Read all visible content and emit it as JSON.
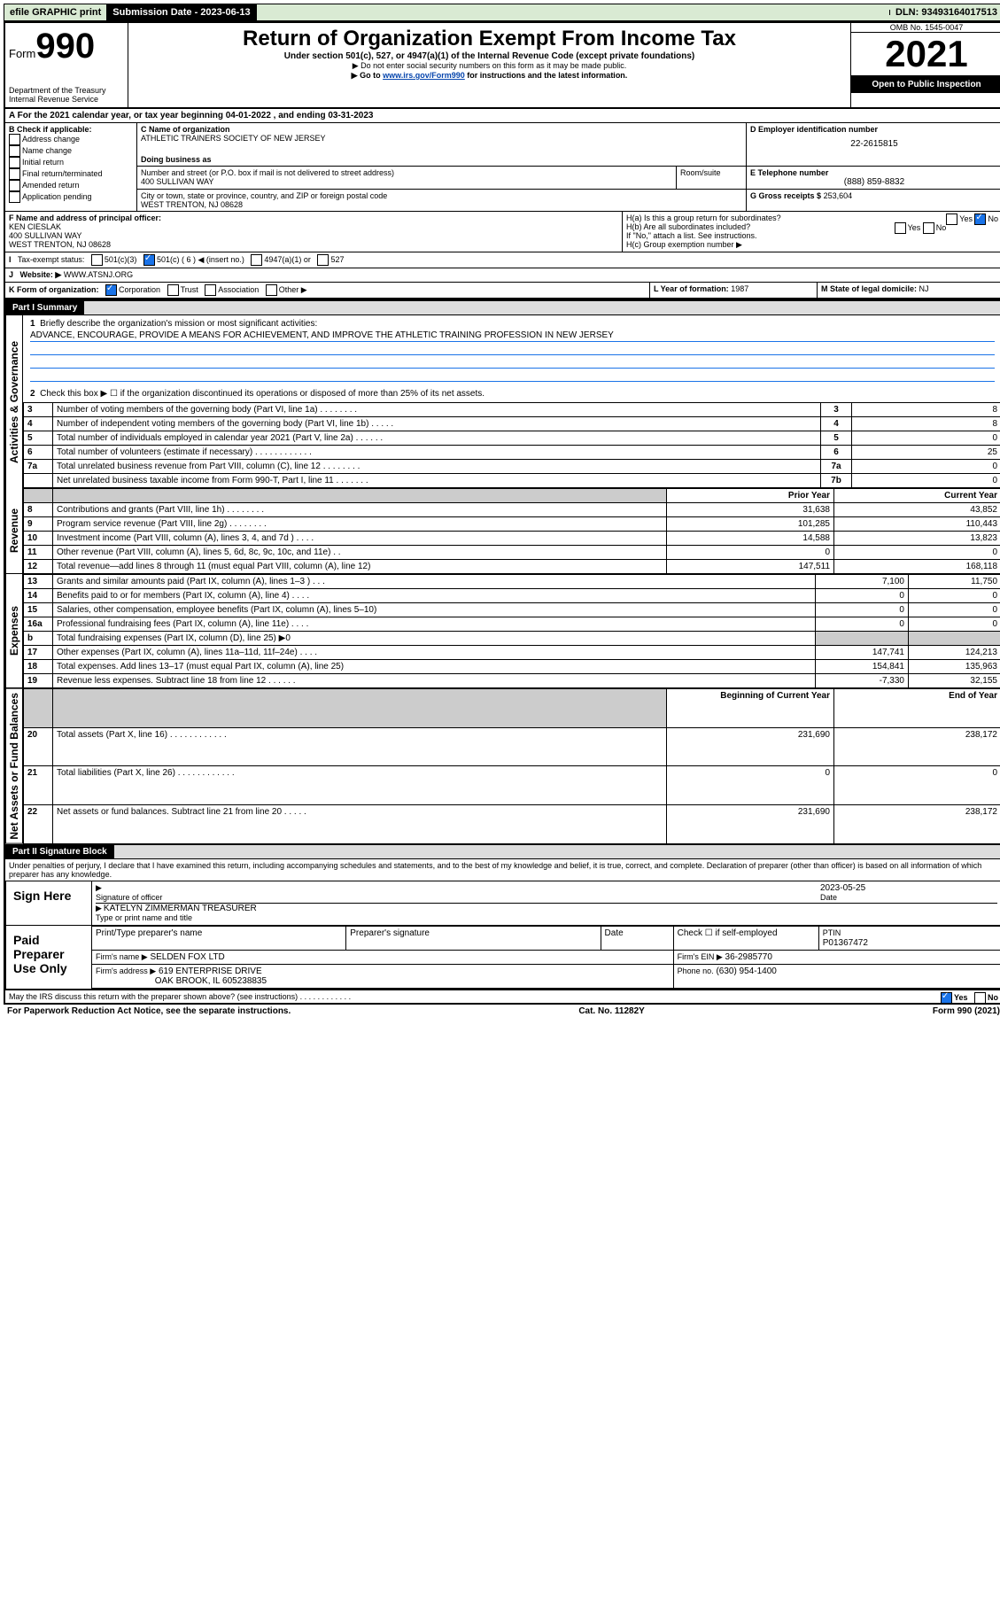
{
  "topbar": {
    "efile": "efile GRAPHIC print",
    "sub_date_label": "Submission Date - 2023-06-13",
    "dln": "DLN: 93493164017513"
  },
  "header": {
    "form_label": "Form",
    "form_no": "990",
    "dept": "Department of the Treasury",
    "irs": "Internal Revenue Service",
    "title": "Return of Organization Exempt From Income Tax",
    "subtitle": "Under section 501(c), 527, or 4947(a)(1) of the Internal Revenue Code (except private foundations)",
    "note1": "▶ Do not enter social security numbers on this form as it may be made public.",
    "note2_pre": "▶ Go to ",
    "note2_link": "www.irs.gov/Form990",
    "note2_post": " for instructions and the latest information.",
    "omb": "OMB No. 1545-0047",
    "year": "2021",
    "open": "Open to Public Inspection"
  },
  "periodA": "For the 2021 calendar year, or tax year beginning 04-01-2022     , and ending 03-31-2023",
  "blockB": {
    "label": "B Check if applicable:",
    "opts": [
      "Address change",
      "Name change",
      "Initial return",
      "Final return/terminated",
      "Amended return",
      "Application pending"
    ]
  },
  "blockC": {
    "name_label": "C Name of organization",
    "name": "ATHLETIC TRAINERS SOCIETY OF NEW JERSEY",
    "dba_label": "Doing business as",
    "addr_label": "Number and street (or P.O. box if mail is not delivered to street address)",
    "room": "Room/suite",
    "addr": "400 SULLIVAN WAY",
    "city_label": "City or town, state or province, country, and ZIP or foreign postal code",
    "city": "WEST TRENTON, NJ  08628"
  },
  "blockD": {
    "label": "D Employer identification number",
    "ein": "22-2615815"
  },
  "blockE": {
    "label": "E Telephone number",
    "phone": "(888) 859-8832"
  },
  "blockG": {
    "label": "G Gross receipts $",
    "val": "253,604"
  },
  "blockF": {
    "label": "F  Name and address of principal officer:",
    "name": "KEN CIESLAK",
    "addr1": "400 SULLIVAN WAY",
    "addr2": "WEST TRENTON, NJ  08628"
  },
  "blockH": {
    "a": "H(a)  Is this a group return for subordinates?",
    "b": "H(b)  Are all subordinates included?",
    "b_note": "If \"No,\" attach a list. See instructions.",
    "c": "H(c)  Group exemption number ▶",
    "yes": "Yes",
    "no": "No"
  },
  "blockI": {
    "label": "Tax-exempt status:",
    "c3": "501(c)(3)",
    "c": "501(c) ( 6 ) ◀ (insert no.)",
    "a1": "4947(a)(1) or",
    "s527": "527"
  },
  "blockJ": {
    "label": "Website: ▶",
    "val": "WWW.ATSNJ.ORG"
  },
  "blockK": {
    "label": "K Form of organization:",
    "corp": "Corporation",
    "trust": "Trust",
    "assoc": "Association",
    "other": "Other ▶"
  },
  "blockL": {
    "label": "L Year of formation:",
    "val": "1987"
  },
  "blockM": {
    "label": "M State of legal domicile:",
    "val": "NJ"
  },
  "part1": {
    "title": "Part I     Summary",
    "q1": "Briefly describe the organization's mission or most significant activities:",
    "mission": "ADVANCE, ENCOURAGE, PROVIDE A MEANS FOR ACHIEVEMENT, AND IMPROVE THE ATHLETIC TRAINING PROFESSION IN NEW JERSEY",
    "q2": "Check this box ▶ ☐  if the organization discontinued its operations or disposed of more than 25% of its net assets.",
    "rows_gov": [
      {
        "n": "3",
        "t": "Number of voting members of the governing body (Part VI, line 1a)   .    .    .    .    .    .    .    .",
        "lbl": "3",
        "v": "8"
      },
      {
        "n": "4",
        "t": "Number of independent voting members of the governing body (Part VI, line 1b)   .    .    .    .    .",
        "lbl": "4",
        "v": "8"
      },
      {
        "n": "5",
        "t": "Total number of individuals employed in calendar year 2021 (Part V, line 2a)   .    .    .    .    .    .",
        "lbl": "5",
        "v": "0"
      },
      {
        "n": "6",
        "t": "Total number of volunteers (estimate if necessary)   .    .    .    .    .    .    .    .    .    .    .    .",
        "lbl": "6",
        "v": "25"
      },
      {
        "n": "7a",
        "t": "Total unrelated business revenue from Part VIII, column (C), line 12   .    .    .    .    .    .    .    .",
        "lbl": "7a",
        "v": "0"
      },
      {
        "n": "",
        "t": "Net unrelated business taxable income from Form 990-T, Part I, line 11   .    .    .    .    .    .    .",
        "lbl": "7b",
        "v": "0"
      }
    ],
    "col_prior": "Prior Year",
    "col_curr": "Current Year",
    "rows_rev": [
      {
        "n": "8",
        "t": "Contributions and grants (Part VIII, line 1h)   .    .    .    .    .    .    .    .",
        "p": "31,638",
        "c": "43,852"
      },
      {
        "n": "9",
        "t": "Program service revenue (Part VIII, line 2g)   .    .    .    .    .    .    .    .",
        "p": "101,285",
        "c": "110,443"
      },
      {
        "n": "10",
        "t": "Investment income (Part VIII, column (A), lines 3, 4, and 7d )   .    .    .    .",
        "p": "14,588",
        "c": "13,823"
      },
      {
        "n": "11",
        "t": "Other revenue (Part VIII, column (A), lines 5, 6d, 8c, 9c, 10c, and 11e)   .    .",
        "p": "0",
        "c": "0"
      },
      {
        "n": "12",
        "t": "Total revenue—add lines 8 through 11 (must equal Part VIII, column (A), line 12)",
        "p": "147,511",
        "c": "168,118"
      }
    ],
    "rows_exp": [
      {
        "n": "13",
        "t": "Grants and similar amounts paid (Part IX, column (A), lines 1–3 )   .    .    .",
        "p": "7,100",
        "c": "11,750"
      },
      {
        "n": "14",
        "t": "Benefits paid to or for members (Part IX, column (A), line 4)   .    .    .    .",
        "p": "0",
        "c": "0"
      },
      {
        "n": "15",
        "t": "Salaries, other compensation, employee benefits (Part IX, column (A), lines 5–10)",
        "p": "0",
        "c": "0"
      },
      {
        "n": "16a",
        "t": "Professional fundraising fees (Part IX, column (A), line 11e)   .    .    .    .",
        "p": "0",
        "c": "0"
      },
      {
        "n": "b",
        "t": "Total fundraising expenses (Part IX, column (D), line 25) ▶0",
        "p": "shade",
        "c": "shade"
      },
      {
        "n": "17",
        "t": "Other expenses (Part IX, column (A), lines 11a–11d, 11f–24e)   .    .    .    .",
        "p": "147,741",
        "c": "124,213"
      },
      {
        "n": "18",
        "t": "Total expenses. Add lines 13–17 (must equal Part IX, column (A), line 25)",
        "p": "154,841",
        "c": "135,963"
      },
      {
        "n": "19",
        "t": "Revenue less expenses. Subtract line 18 from line 12   .    .    .    .    .    .",
        "p": "-7,330",
        "c": "32,155"
      }
    ],
    "col_beg": "Beginning of Current Year",
    "col_end": "End of Year",
    "rows_net": [
      {
        "n": "20",
        "t": "Total assets (Part X, line 16)   .    .    .    .    .    .    .    .    .    .    .    .",
        "p": "231,690",
        "c": "238,172"
      },
      {
        "n": "21",
        "t": "Total liabilities (Part X, line 26)   .    .    .    .    .    .    .    .    .    .    .    .",
        "p": "0",
        "c": "0"
      },
      {
        "n": "22",
        "t": "Net assets or fund balances. Subtract line 21 from line 20   .    .    .    .    .",
        "p": "231,690",
        "c": "238,172"
      }
    ],
    "side_gov": "Activities & Governance",
    "side_rev": "Revenue",
    "side_exp": "Expenses",
    "side_net": "Net Assets or Fund Balances"
  },
  "part2": {
    "title": "Part II     Signature Block",
    "decl": "Under penalties of perjury, I declare that I have examined this return, including accompanying schedules and statements, and to the best of my knowledge and belief, it is true, correct, and complete. Declaration of preparer (other than officer) is based on all information of which preparer has any knowledge.",
    "sign_here": "Sign Here",
    "sig_officer": "Signature of officer",
    "sig_date_label": "Date",
    "sig_date": "2023-05-25",
    "typed_name": "KATELYN ZIMMERMAN  TREASURER",
    "typed_label": "Type or print name and title",
    "paid": "Paid Preparer Use Only",
    "prep_name_label": "Print/Type preparer's name",
    "prep_sig_label": "Preparer's signature",
    "date_label": "Date",
    "check_self": "Check ☐ if self-employed",
    "ptin_label": "PTIN",
    "ptin": "P01367472",
    "firm_name_label": "Firm's name     ▶",
    "firm_name": "SELDEN FOX LTD",
    "firm_ein_label": "Firm's EIN ▶",
    "firm_ein": "36-2985770",
    "firm_addr_label": "Firm's address ▶",
    "firm_addr1": "619 ENTERPRISE DRIVE",
    "firm_addr2": "OAK BROOK, IL  605238835",
    "firm_phone_label": "Phone no.",
    "firm_phone": "(630) 954-1400",
    "may_irs": "May the IRS discuss this return with the preparer shown above? (see instructions)   .    .    .    .    .    .    .    .    .    .    .    ."
  },
  "footer": {
    "pra": "For Paperwork Reduction Act Notice, see the separate instructions.",
    "cat": "Cat. No. 11282Y",
    "ver": "Form 990 (2021)"
  }
}
